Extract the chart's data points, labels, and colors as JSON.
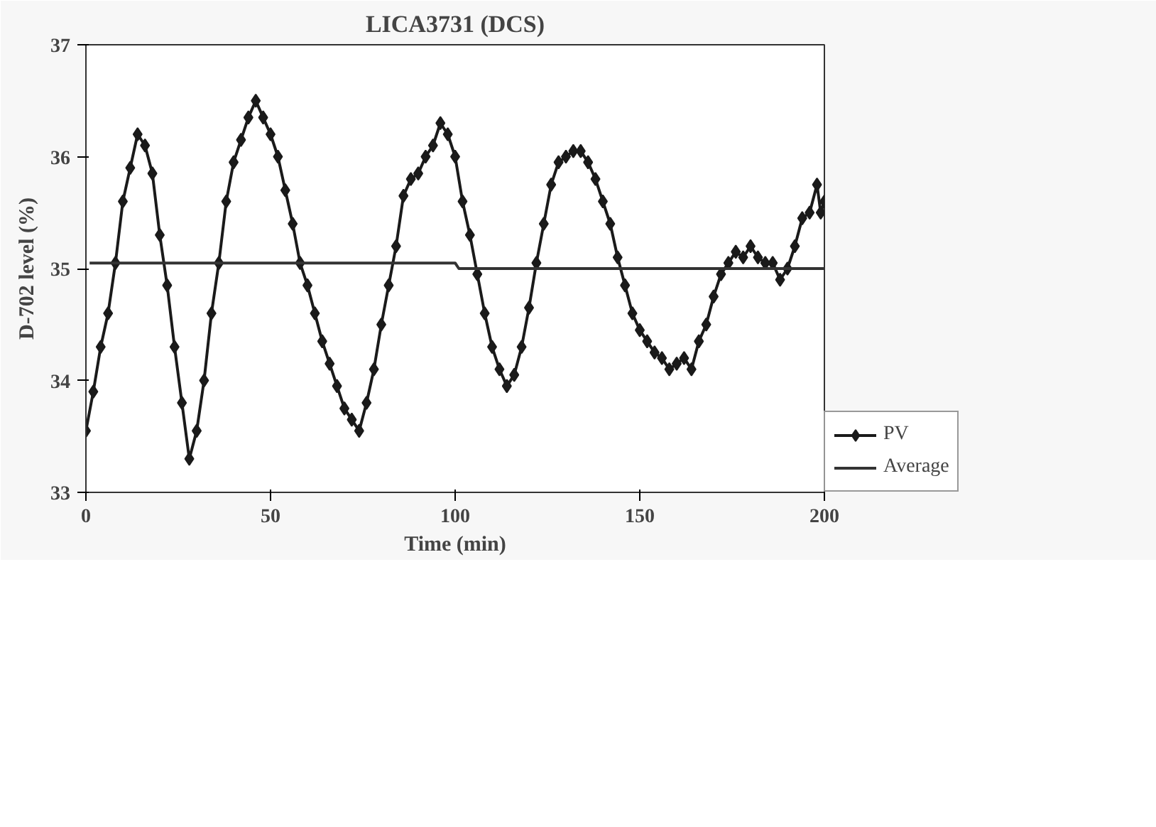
{
  "chart_data": {
    "type": "line",
    "title": "LICA3731 (DCS)",
    "xlabel": "Time (min)",
    "ylabel": "D-702 level (%)",
    "xlim": [
      0,
      200
    ],
    "xticks": [
      0,
      50,
      100,
      150,
      200
    ],
    "ylim": [
      33,
      37
    ],
    "yticks": [
      33,
      34,
      35,
      36,
      37
    ],
    "grid": false,
    "legend": "right",
    "series": [
      {
        "name": "PV",
        "color": "#1a1a1a",
        "marker": "diamond",
        "x": [
          0,
          2,
          4,
          6,
          8,
          10,
          12,
          14,
          16,
          18,
          20,
          22,
          24,
          26,
          28,
          30,
          32,
          34,
          36,
          38,
          40,
          42,
          44,
          46,
          48,
          50,
          52,
          54,
          56,
          58,
          60,
          62,
          64,
          66,
          68,
          70,
          72,
          74,
          76,
          78,
          80,
          82,
          84,
          86,
          88,
          90,
          92,
          94,
          96,
          98,
          100,
          102,
          104,
          106,
          108,
          110,
          112,
          114,
          116,
          118,
          120,
          122,
          124,
          126,
          128,
          130,
          132,
          134,
          136,
          138,
          140,
          142,
          144,
          146,
          148,
          150,
          152,
          154,
          156,
          158,
          160,
          162,
          164,
          166,
          168,
          170,
          172,
          174,
          176,
          178,
          180,
          182,
          184,
          186,
          188,
          190,
          192,
          194,
          196,
          198,
          199,
          200
        ],
        "values": [
          33.55,
          33.9,
          34.3,
          34.6,
          35.05,
          35.6,
          35.9,
          36.2,
          36.1,
          35.85,
          35.3,
          34.85,
          34.3,
          33.8,
          33.3,
          33.55,
          34.0,
          34.6,
          35.05,
          35.6,
          35.95,
          36.15,
          36.35,
          36.5,
          36.35,
          36.2,
          36.0,
          35.7,
          35.4,
          35.05,
          34.85,
          34.6,
          34.35,
          34.15,
          33.95,
          33.75,
          33.65,
          33.55,
          33.8,
          34.1,
          34.5,
          34.85,
          35.2,
          35.65,
          35.8,
          35.85,
          36.0,
          36.1,
          36.3,
          36.2,
          36.0,
          35.6,
          35.3,
          34.95,
          34.6,
          34.3,
          34.1,
          33.95,
          34.05,
          34.3,
          34.65,
          35.05,
          35.4,
          35.75,
          35.95,
          36.0,
          36.05,
          36.05,
          35.95,
          35.8,
          35.6,
          35.4,
          35.1,
          34.85,
          34.6,
          34.45,
          34.35,
          34.25,
          34.2,
          34.1,
          34.15,
          34.2,
          34.1,
          34.35,
          34.5,
          34.75,
          34.95,
          35.05,
          35.15,
          35.1,
          35.2,
          35.1,
          35.05,
          35.05,
          34.9,
          35.0,
          35.2,
          35.45,
          35.5,
          35.75,
          35.5,
          35.6
        ]
      },
      {
        "name": "Average",
        "color": "#333333",
        "marker": "none",
        "x": [
          1,
          100,
          101,
          200
        ],
        "values": [
          35.05,
          35.05,
          35.0,
          35.0
        ]
      }
    ]
  }
}
